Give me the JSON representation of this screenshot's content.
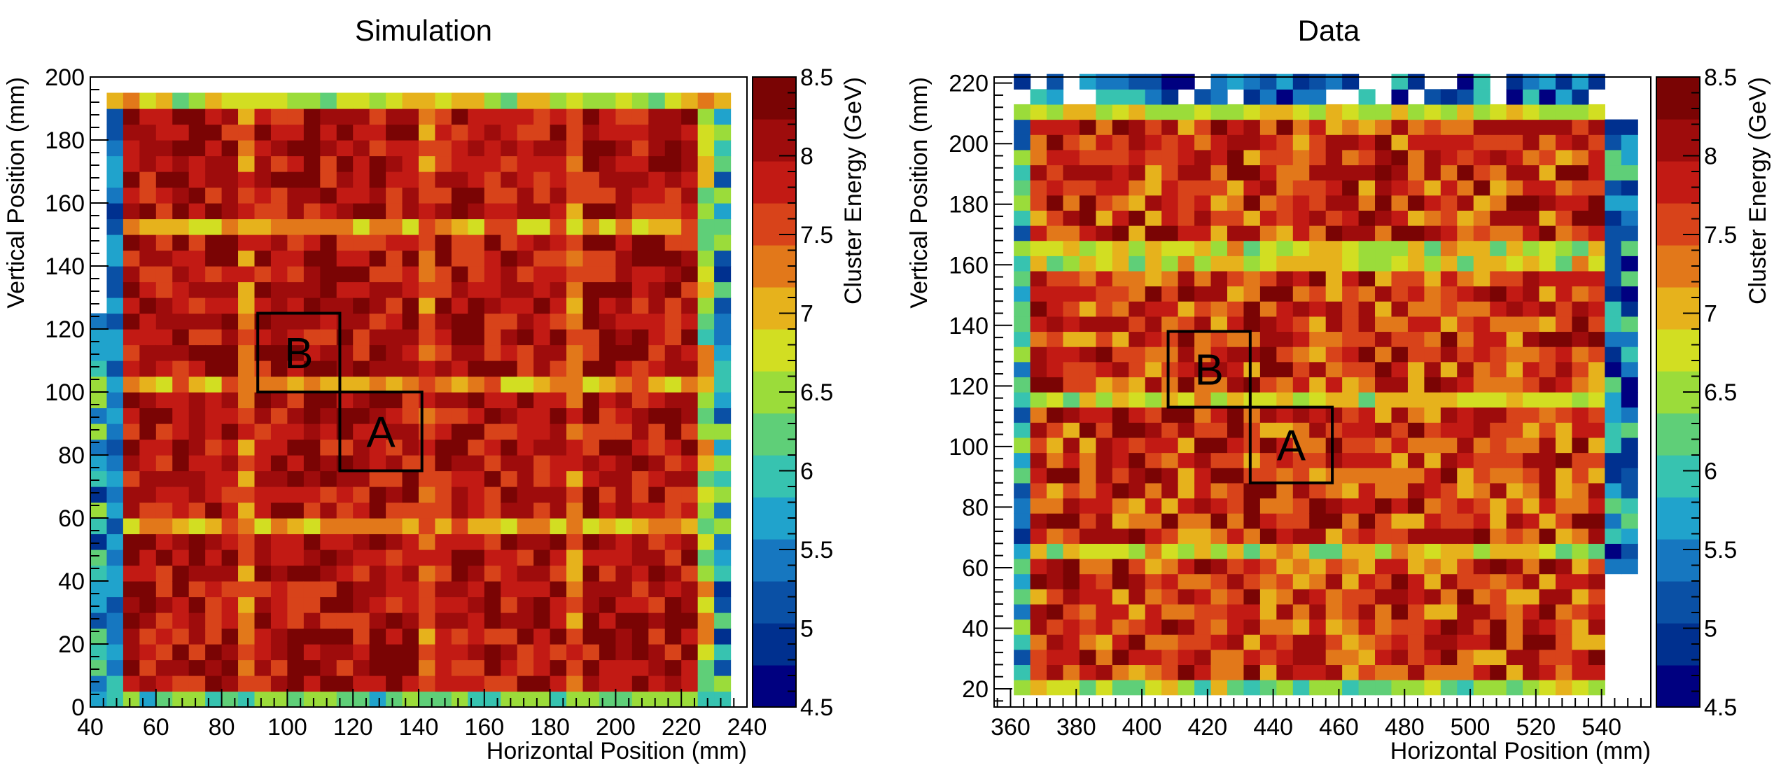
{
  "chart_data": [
    {
      "type": "heatmap",
      "title": "Simulation",
      "xlabel": "Horizontal Position (mm)",
      "ylabel": "Vertical Position (mm)",
      "zlabel": "Cluster Energy (GeV)",
      "xlim": [
        40,
        240
      ],
      "ylim": [
        0,
        200
      ],
      "zlim": [
        4.5,
        8.5
      ],
      "x_ticks": [
        "40",
        "60",
        "80",
        "100",
        "120",
        "140",
        "160",
        "180",
        "200",
        "220",
        "240"
      ],
      "y_ticks": [
        "0",
        "20",
        "40",
        "60",
        "80",
        "100",
        "120",
        "140",
        "160",
        "180",
        "200"
      ],
      "z_ticks": [
        "4.5",
        "5",
        "5.5",
        "6",
        "6.5",
        "7",
        "7.5",
        "8",
        "8.5"
      ],
      "cell_size_mm": 5,
      "regions": [
        {
          "label": "B",
          "x": [
            91,
            116
          ],
          "y": [
            100,
            125
          ]
        },
        {
          "label": "A",
          "x": [
            116,
            141
          ],
          "y": [
            75,
            100
          ]
        }
      ]
    },
    {
      "type": "heatmap",
      "title": "Data",
      "xlabel": "Horizontal Position (mm)",
      "ylabel": "Vertical Position (mm)",
      "zlabel": "Cluster Energy (GeV)",
      "xlim": [
        355,
        555
      ],
      "ylim": [
        14,
        222
      ],
      "zlim": [
        4.5,
        8.5
      ],
      "x_ticks": [
        "360",
        "380",
        "400",
        "420",
        "440",
        "460",
        "480",
        "500",
        "520",
        "540"
      ],
      "y_ticks": [
        "20",
        "40",
        "60",
        "80",
        "100",
        "120",
        "140",
        "160",
        "180",
        "200",
        "220"
      ],
      "z_ticks": [
        "4.5",
        "5",
        "5.5",
        "6",
        "6.5",
        "7",
        "7.5",
        "8",
        "8.5"
      ],
      "cell_size_mm": 5,
      "regions": [
        {
          "label": "B",
          "x": [
            408,
            433
          ],
          "y": [
            113,
            138
          ]
        },
        {
          "label": "A",
          "x": [
            433,
            458
          ],
          "y": [
            88,
            113
          ]
        }
      ]
    }
  ],
  "colors": {
    "palette": [
      "#000080",
      "#00308f",
      "#0a50a5",
      "#1677c0",
      "#20a3cc",
      "#37c3b0",
      "#5fcf78",
      "#9bdc3a",
      "#d2de22",
      "#e6b21c",
      "#e2781a",
      "#d8431a",
      "#c21a14",
      "#9e0c0c",
      "#7a0404"
    ]
  }
}
